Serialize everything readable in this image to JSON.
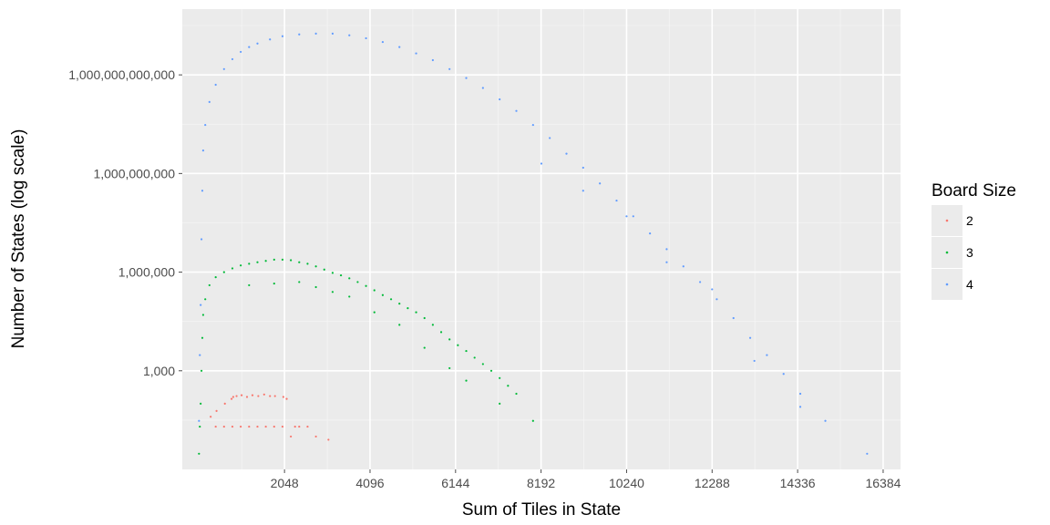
{
  "chart_data": {
    "type": "scatter",
    "title": "",
    "xlabel": "Sum of Tiles in State",
    "ylabel": "Number of States (log scale)",
    "x_scale": "linear",
    "y_scale": "log10",
    "xlim": [
      -400,
      16800
    ],
    "ylim": [
      1,
      100000000000000
    ],
    "x_ticks": [
      2048,
      4096,
      6144,
      8192,
      10240,
      12288,
      14336,
      16384
    ],
    "x_tick_labels": [
      "2048",
      "4096",
      "6144",
      "8192",
      "10240",
      "12288",
      "14336",
      "16384"
    ],
    "y_ticks": [
      1000,
      1000000,
      1000000000,
      1000000000000
    ],
    "y_tick_labels": [
      "1,000",
      "1,000,000",
      "1,000,000,000",
      "1,000,000,000,000"
    ],
    "grid": true,
    "background": "#ebebeb",
    "legend": {
      "title": "Board Size",
      "placement": "right"
    },
    "series": [
      {
        "name": "2",
        "color": "#F8766D",
        "points": [
          [
            280,
            40
          ],
          [
            420,
            60
          ],
          [
            620,
            100
          ],
          [
            780,
            140
          ],
          [
            820,
            160
          ],
          [
            900,
            170
          ],
          [
            1020,
            180
          ],
          [
            1150,
            160
          ],
          [
            1280,
            180
          ],
          [
            1420,
            170
          ],
          [
            1560,
            190
          ],
          [
            1700,
            170
          ],
          [
            1820,
            170
          ],
          [
            2020,
            160
          ],
          [
            2100,
            140
          ],
          [
            2300,
            20
          ],
          [
            2400,
            20
          ],
          [
            3100,
            8
          ],
          [
            400,
            20
          ],
          [
            600,
            20
          ],
          [
            800,
            20
          ],
          [
            1000,
            20
          ],
          [
            1200,
            20
          ],
          [
            1400,
            20
          ],
          [
            1600,
            20
          ],
          [
            1800,
            20
          ],
          [
            2000,
            20
          ],
          [
            2200,
            10
          ],
          [
            2600,
            20
          ],
          [
            2800,
            10
          ]
        ]
      },
      {
        "name": "3",
        "color": "#00BA38",
        "points": [
          [
            0,
            3
          ],
          [
            20,
            20
          ],
          [
            40,
            100
          ],
          [
            60,
            1000
          ],
          [
            80,
            10000
          ],
          [
            100,
            50000
          ],
          [
            150,
            150000
          ],
          [
            250,
            400000
          ],
          [
            400,
            700000
          ],
          [
            600,
            1000000
          ],
          [
            800,
            1300000
          ],
          [
            1000,
            1600000
          ],
          [
            1200,
            1800000
          ],
          [
            1400,
            2000000
          ],
          [
            1600,
            2200000
          ],
          [
            1800,
            2400000
          ],
          [
            2000,
            2400000
          ],
          [
            2200,
            2300000
          ],
          [
            2400,
            2000000
          ],
          [
            2600,
            1800000
          ],
          [
            2800,
            1500000
          ],
          [
            3000,
            1200000
          ],
          [
            3200,
            950000
          ],
          [
            3400,
            800000
          ],
          [
            3600,
            650000
          ],
          [
            3800,
            500000
          ],
          [
            4000,
            380000
          ],
          [
            4200,
            280000
          ],
          [
            4400,
            200000
          ],
          [
            4600,
            150000
          ],
          [
            4800,
            110000
          ],
          [
            5000,
            80000
          ],
          [
            5200,
            60000
          ],
          [
            5400,
            40000
          ],
          [
            5600,
            25000
          ],
          [
            5800,
            15000
          ],
          [
            6000,
            9000
          ],
          [
            6200,
            6000
          ],
          [
            6400,
            4000
          ],
          [
            6600,
            2500
          ],
          [
            6800,
            1600
          ],
          [
            7000,
            1000
          ],
          [
            7200,
            600
          ],
          [
            7400,
            350
          ],
          [
            7600,
            200
          ],
          [
            8000,
            30
          ],
          [
            1200,
            400000
          ],
          [
            1800,
            450000
          ],
          [
            2400,
            500000
          ],
          [
            2800,
            350000
          ],
          [
            3200,
            250000
          ],
          [
            3600,
            180000
          ],
          [
            4200,
            60000
          ],
          [
            4800,
            25000
          ],
          [
            5400,
            5000
          ],
          [
            6000,
            1200
          ],
          [
            6400,
            500
          ],
          [
            7200,
            100
          ]
        ]
      },
      {
        "name": "4",
        "color": "#619CFF",
        "points": [
          [
            0,
            30
          ],
          [
            20,
            3000
          ],
          [
            40,
            100000
          ],
          [
            60,
            10000000
          ],
          [
            80,
            300000000
          ],
          [
            100,
            5000000000
          ],
          [
            150,
            30000000000
          ],
          [
            250,
            150000000000
          ],
          [
            400,
            500000000000
          ],
          [
            600,
            1500000000000
          ],
          [
            800,
            3000000000000
          ],
          [
            1000,
            5000000000000
          ],
          [
            1200,
            7000000000000
          ],
          [
            1400,
            9000000000000
          ],
          [
            1700,
            12000000000000
          ],
          [
            2000,
            15000000000000
          ],
          [
            2400,
            17000000000000
          ],
          [
            2800,
            18000000000000
          ],
          [
            3200,
            18000000000000
          ],
          [
            3600,
            16000000000000
          ],
          [
            4000,
            13000000000000
          ],
          [
            4400,
            10000000000000
          ],
          [
            4800,
            7000000000000
          ],
          [
            5200,
            4500000000000
          ],
          [
            5600,
            2800000000000
          ],
          [
            6000,
            1500000000000
          ],
          [
            6400,
            800000000000
          ],
          [
            6800,
            400000000000
          ],
          [
            7200,
            180000000000
          ],
          [
            7600,
            80000000000
          ],
          [
            8000,
            30000000000
          ],
          [
            8400,
            12000000000
          ],
          [
            8800,
            4000000000
          ],
          [
            9200,
            1500000000
          ],
          [
            9600,
            500000000
          ],
          [
            10000,
            150000000
          ],
          [
            10400,
            50000000
          ],
          [
            10800,
            15000000
          ],
          [
            11200,
            5000000
          ],
          [
            11600,
            1500000
          ],
          [
            12000,
            500000
          ],
          [
            12400,
            150000
          ],
          [
            12800,
            40000
          ],
          [
            13200,
            10000
          ],
          [
            13600,
            3000
          ],
          [
            14000,
            800
          ],
          [
            14400,
            200
          ],
          [
            15000,
            30
          ],
          [
            8200,
            2000000000
          ],
          [
            9200,
            300000000
          ],
          [
            10240,
            50000000
          ],
          [
            11200,
            2000000
          ],
          [
            12288,
            300000
          ],
          [
            13300,
            2000
          ],
          [
            14400,
            80
          ],
          [
            16000,
            3
          ]
        ]
      }
    ]
  }
}
